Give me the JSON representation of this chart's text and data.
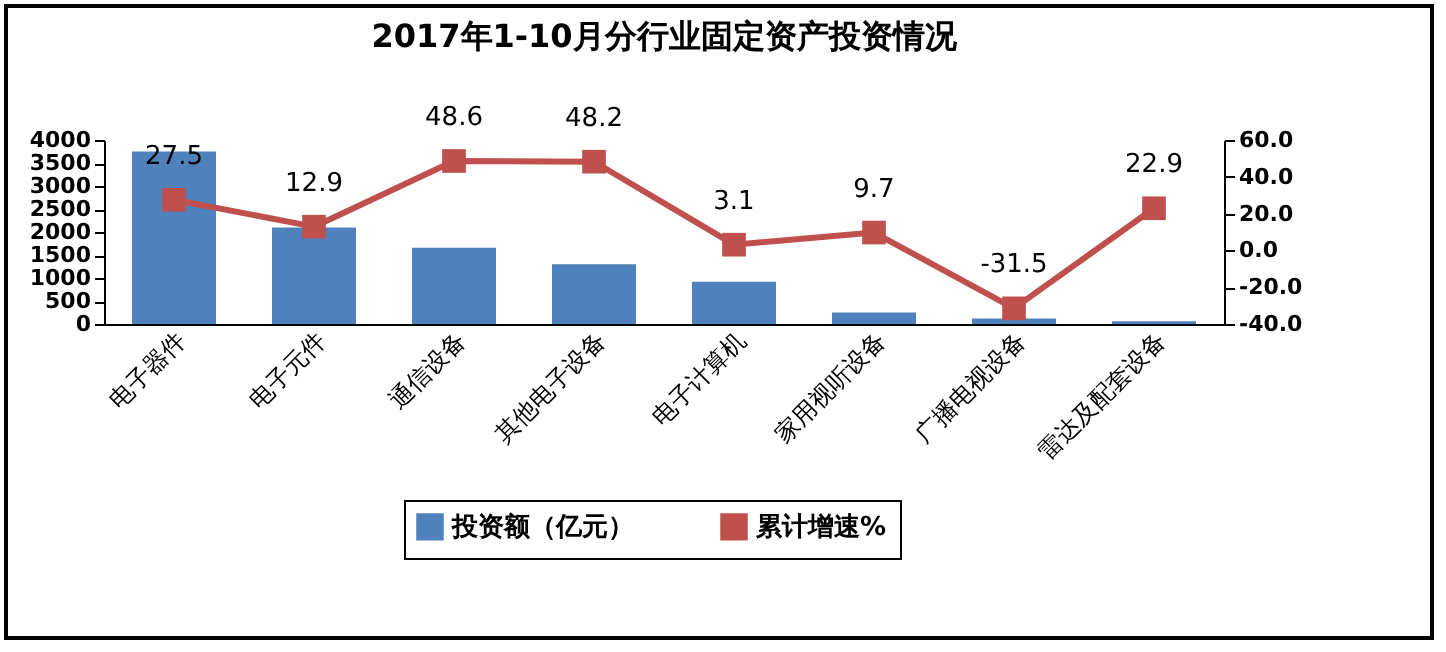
{
  "chart_data": {
    "type": "bar",
    "title": "2017年1-10月分行业固定资产投资情况",
    "categories": [
      "电子器件",
      "电子元件",
      "通信设备",
      "其他电子设备",
      "电子计算机",
      "家用视听设备",
      "广播电视设备",
      "雷达及配套设备"
    ],
    "series": [
      {
        "name": "投资额（亿元）",
        "color": "#4f81bd",
        "values": [
          3750,
          2100,
          1660,
          1300,
          920,
          250,
          120,
          60
        ]
      },
      {
        "name": "累计增速%",
        "type": "line",
        "axis": "y2",
        "color": "#c0504d",
        "values": [
          27.5,
          12.9,
          48.6,
          48.2,
          3.1,
          9.7,
          -31.5,
          22.9
        ],
        "value_labels": [
          "27.5",
          "12.9",
          "48.6",
          "48.2",
          "3.1",
          "9.7",
          "-31.5",
          "22.9"
        ]
      }
    ],
    "ylim": [
      0,
      4000
    ],
    "yticks": [
      0,
      500,
      1000,
      1500,
      2000,
      2500,
      3000,
      3500,
      4000
    ],
    "y2lim": [
      -40,
      60
    ],
    "y2ticks": [
      {
        "value": -40,
        "label": "-40.0"
      },
      {
        "value": -20,
        "label": "-20.0"
      },
      {
        "value": 0,
        "label": "0.0"
      },
      {
        "value": 20,
        "label": "20.0"
      },
      {
        "value": 40,
        "label": "40.0"
      },
      {
        "value": 60,
        "label": "60.0"
      }
    ],
    "marker": "square",
    "grid": false,
    "legend": "bottom"
  }
}
